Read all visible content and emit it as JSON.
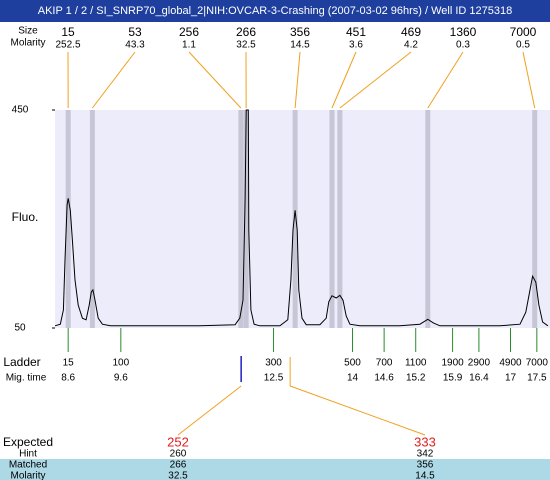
{
  "chart_data": {
    "type": "line",
    "title": "AKIP 1 / 2 / SI_SNRP70_global_2|NIH:OVCAR-3-Crashing (2007-03-02 96hrs) / Well ID 1275318",
    "ylabel": "Fluo.",
    "ylim": [
      50,
      450
    ],
    "yticks": [
      450,
      50
    ],
    "xlim": [
      8.35,
      17.75
    ],
    "color": "#000000",
    "x": [
      8.35,
      8.45,
      8.51,
      8.54,
      8.58,
      8.6,
      8.64,
      8.68,
      8.73,
      8.79,
      8.87,
      8.94,
      9.0,
      9.04,
      9.07,
      9.11,
      9.17,
      9.25,
      9.4,
      10.16,
      11.1,
      11.77,
      11.86,
      11.92,
      11.96,
      11.98,
      12.02,
      12.03,
      12.07,
      12.13,
      12.24,
      12.62,
      12.77,
      12.83,
      12.87,
      12.91,
      12.95,
      12.98,
      13.04,
      13.12,
      13.38,
      13.5,
      13.55,
      13.61,
      13.69,
      13.76,
      13.82,
      13.88,
      13.95,
      14.14,
      14.9,
      15.28,
      15.43,
      15.54,
      15.66,
      16.8,
      17.18,
      17.29,
      17.37,
      17.42,
      17.48,
      17.54,
      17.61,
      17.71
    ],
    "values": [
      54,
      57,
      83,
      175,
      276,
      288,
      266,
      211,
      138,
      92,
      68,
      65,
      92,
      116,
      120,
      101,
      68,
      57,
      54,
      54,
      54,
      56,
      68,
      101,
      285,
      450,
      450,
      230,
      83,
      57,
      54,
      54,
      65,
      138,
      230,
      266,
      230,
      120,
      68,
      56,
      56,
      68,
      98,
      109,
      105,
      110,
      101,
      72,
      57,
      54,
      54,
      57,
      66,
      59,
      54,
      54,
      57,
      79,
      120,
      145,
      134,
      92,
      61,
      54
    ],
    "peaks": {
      "size_label": "Size",
      "molarity_label": "Molarity",
      "sizes": [
        15,
        53,
        256,
        266,
        356,
        451,
        469,
        1360,
        7000
      ],
      "molarity": [
        252.5,
        43.3,
        1.1,
        32.5,
        14.5,
        3.6,
        4.2,
        0.3,
        0.5
      ],
      "times": [
        8.6,
        9.06,
        11.88,
        11.98,
        12.91,
        13.61,
        13.76,
        15.43,
        17.46
      ]
    },
    "ladder": {
      "label": "Ladder",
      "time_label": "Mig. time",
      "sizes": [
        15,
        100,
        300,
        500,
        700,
        1100,
        1900,
        2900,
        4900,
        7000
      ],
      "times": [
        8.6,
        9.6,
        12.5,
        14,
        14.6,
        15.2,
        15.9,
        16.4,
        17,
        17.5
      ]
    },
    "expected": {
      "label": "Expected",
      "row_labels": [
        "Hint",
        "Matched",
        "Molarity"
      ],
      "columns": [
        {
          "expected": 252,
          "hint": 260,
          "matched": 266,
          "molarity": 32.5
        },
        {
          "expected": 333,
          "hint": 342,
          "matched": 356,
          "molarity": 14.5
        }
      ]
    }
  }
}
